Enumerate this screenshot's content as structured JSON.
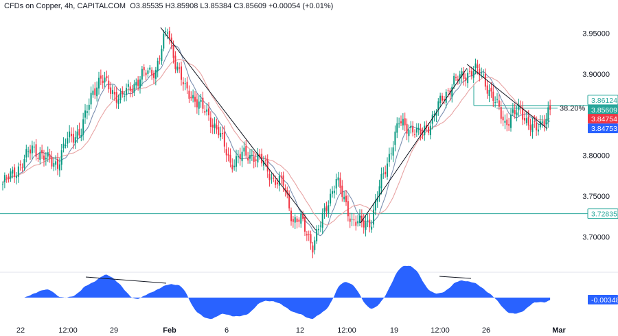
{
  "header": {
    "symbol": "CFDs on Copper, 4h, CAPITALCOM",
    "open": "O3.85535",
    "high": "H3.85908",
    "low": "L3.85384",
    "close": "C3.85609",
    "change": "+0.00054 (+0.01%)"
  },
  "price_axis": {
    "ticks": [
      "3.95000",
      "3.90000",
      "3.80000",
      "3.75000",
      "3.70000"
    ]
  },
  "badges": {
    "fib_level": "3.86124",
    "last": "3.85609",
    "red": "3.84754",
    "blue": "3.84753",
    "support": "3.72835",
    "oscillator": "-0.00348",
    "fib_label": "38.20%"
  },
  "time_axis": {
    "labels": [
      "22",
      "12:00",
      "29",
      "Feb",
      "6",
      "12",
      "12:00",
      "19",
      "12:00",
      "26",
      "Mar"
    ]
  },
  "colors": {
    "up": "#089981",
    "down": "#f23645",
    "ma_fast": "#7b8fb0",
    "ma_slow": "#e8a3a3",
    "hline": "#26a69a",
    "oscillator": "#2962ff",
    "badge_blue": "#2962ff",
    "badge_red": "#f23645",
    "badge_teal": "#26a69a"
  },
  "chart_data": {
    "type": "candlestick",
    "title": "CFDs on Copper, 4h, CAPITALCOM",
    "ylim": [
      3.675,
      3.965
    ],
    "x_labels": [
      "22",
      "12:00",
      "29",
      "Feb",
      "6",
      "12",
      "12:00",
      "19",
      "12:00",
      "26",
      "Mar"
    ],
    "close_path": [
      [
        0,
        3.765
      ],
      [
        6,
        3.78
      ],
      [
        10,
        3.79
      ],
      [
        15,
        3.81
      ],
      [
        22,
        3.795
      ],
      [
        28,
        3.79
      ],
      [
        33,
        3.82
      ],
      [
        40,
        3.83
      ],
      [
        46,
        3.88
      ],
      [
        50,
        3.895
      ],
      [
        55,
        3.88
      ],
      [
        60,
        3.87
      ],
      [
        66,
        3.885
      ],
      [
        72,
        3.9
      ],
      [
        78,
        3.905
      ],
      [
        82,
        3.94
      ],
      [
        84,
        3.955
      ],
      [
        88,
        3.915
      ],
      [
        93,
        3.88
      ],
      [
        98,
        3.87
      ],
      [
        104,
        3.85
      ],
      [
        110,
        3.83
      ],
      [
        116,
        3.79
      ],
      [
        122,
        3.8
      ],
      [
        128,
        3.8
      ],
      [
        133,
        3.79
      ],
      [
        138,
        3.77
      ],
      [
        143,
        3.765
      ],
      [
        148,
        3.72
      ],
      [
        152,
        3.72
      ],
      [
        156,
        3.7
      ],
      [
        158,
        3.69
      ],
      [
        162,
        3.715
      ],
      [
        166,
        3.745
      ],
      [
        170,
        3.77
      ],
      [
        174,
        3.745
      ],
      [
        178,
        3.72
      ],
      [
        183,
        3.715
      ],
      [
        188,
        3.72
      ],
      [
        192,
        3.76
      ],
      [
        197,
        3.8
      ],
      [
        202,
        3.84
      ],
      [
        207,
        3.835
      ],
      [
        212,
        3.825
      ],
      [
        218,
        3.84
      ],
      [
        224,
        3.87
      ],
      [
        230,
        3.89
      ],
      [
        236,
        3.9
      ],
      [
        240,
        3.905
      ],
      [
        244,
        3.9
      ],
      [
        248,
        3.88
      ],
      [
        252,
        3.86
      ],
      [
        256,
        3.84
      ],
      [
        260,
        3.85
      ],
      [
        264,
        3.855
      ],
      [
        268,
        3.84
      ],
      [
        272,
        3.83
      ],
      [
        275,
        3.84
      ],
      [
        278,
        3.856
      ]
    ],
    "support_level": 3.72835,
    "fib_level": 3.86124,
    "fib_ratio": "38.20%",
    "oscillator": {
      "name": "oscillator",
      "last_value": -0.00348,
      "ylim": [
        -0.03,
        0.035
      ]
    }
  }
}
